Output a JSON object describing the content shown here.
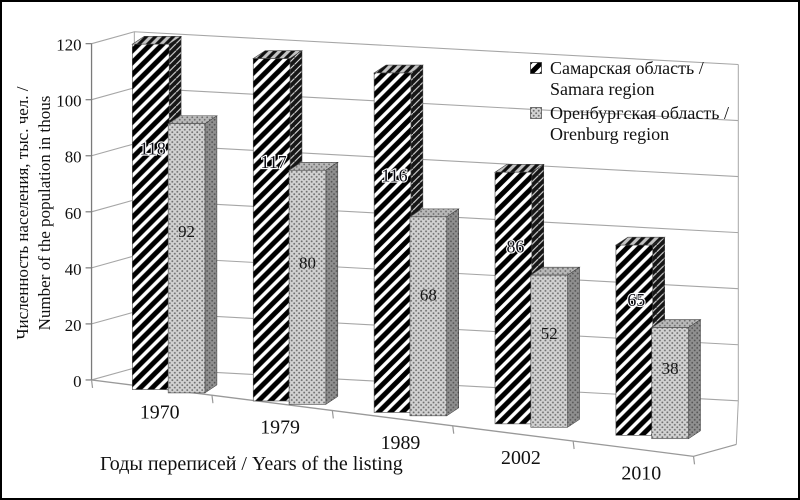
{
  "figure": {
    "type": "3d-bar-chart"
  },
  "chart_data": {
    "type": "bar",
    "style": "3d-perspective-columns",
    "categories": [
      "1970",
      "1979",
      "1989",
      "2002",
      "2010"
    ],
    "series": [
      {
        "name": "Самарская область / Samara region",
        "pattern": "black-diagonal-hatch-on-white",
        "values": [
          118,
          117,
          116,
          86,
          65
        ]
      },
      {
        "name": "Оренбургская область / Orenburg region",
        "pattern": "gray-dot-lattice",
        "values": [
          92,
          80,
          68,
          52,
          38
        ]
      }
    ],
    "data_labels_visible": true,
    "xlabel": "Годы переписей / Years of the listing",
    "ylabel": "Численность населения, тыс. чел. / Number of the population in thous",
    "ylim": [
      0,
      120
    ],
    "y_ticks": [
      0,
      20,
      40,
      60,
      80,
      100,
      120
    ],
    "grid": "horizontal",
    "legend_position": "top-right"
  },
  "axes": {
    "y_title_line1": "Численность населения, тыс. чел. /",
    "y_title_line2": "Number of the population in thous",
    "x_title": "Годы переписей / Years of the listing"
  },
  "legend": {
    "items": [
      {
        "line1": "Самарская область /",
        "line2": "Samara region"
      },
      {
        "line1": "Оренбургская область /",
        "line2": "Orenburg region"
      }
    ]
  },
  "colors": {
    "grid": "#a6a6a6",
    "axis": "#7a7a7a",
    "text": "#1a1a1a",
    "samara_fill": "#ffffff",
    "samara_stripe": "#000000",
    "orenburg_fill": "#d2d2d2",
    "orenburg_dot": "#6f6f6f"
  }
}
